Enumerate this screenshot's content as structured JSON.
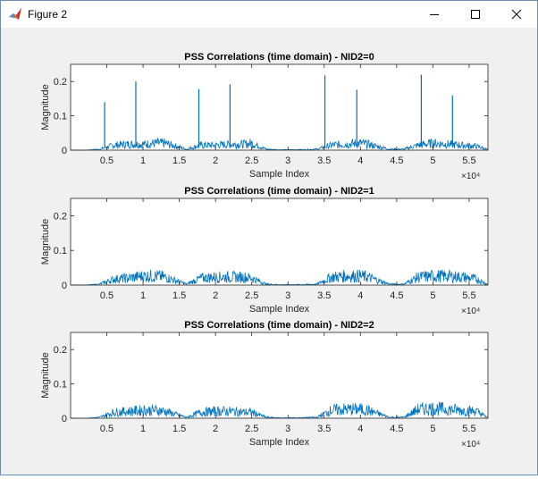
{
  "window": {
    "title": "Figure 2",
    "app_icon": "matlab-icon",
    "controls": {
      "minimize": "minimize-icon",
      "maximize": "maximize-icon",
      "close": "close-icon"
    }
  },
  "chart_data": [
    {
      "type": "line",
      "title": "PSS Correlations (time domain) - NID2=0",
      "xlabel": "Sample Index",
      "ylabel": "Magnitude",
      "xlim": [
        0,
        57600
      ],
      "ylim": [
        0,
        0.25
      ],
      "x_multiplier": "×10⁴",
      "xticks": [
        {
          "v": 5000,
          "label": "0.5"
        },
        {
          "v": 10000,
          "label": "1"
        },
        {
          "v": 15000,
          "label": "1.5"
        },
        {
          "v": 20000,
          "label": "2"
        },
        {
          "v": 25000,
          "label": "2.5"
        },
        {
          "v": 30000,
          "label": "3"
        },
        {
          "v": 35000,
          "label": "3.5"
        },
        {
          "v": 40000,
          "label": "4"
        },
        {
          "v": 45000,
          "label": "4.5"
        },
        {
          "v": 50000,
          "label": "5"
        },
        {
          "v": 55000,
          "label": "5.5"
        }
      ],
      "yticks": [
        {
          "v": 0,
          "label": "0"
        },
        {
          "v": 0.1,
          "label": "0.1"
        },
        {
          "v": 0.2,
          "label": "0.2"
        }
      ],
      "color": "#0072bd",
      "segments": [
        {
          "x": [
            200,
            2000,
            4000,
            6000,
            8000,
            10000,
            12000,
            13000,
            16000,
            18000,
            20000,
            22000,
            24000,
            25000,
            27000,
            29000,
            32000,
            34000,
            36000,
            38000,
            40000,
            41000,
            44000,
            46000,
            48000,
            50000,
            52000,
            54000,
            56000,
            57600
          ],
          "y": [
            0,
            0,
            0.005,
            0.025,
            0.03,
            0.03,
            0.035,
            0.035,
            0.005,
            0.025,
            0.025,
            0.03,
            0.03,
            0.035,
            0.005,
            0.002,
            0.003,
            0.005,
            0.025,
            0.03,
            0.035,
            0.03,
            0.005,
            0.005,
            0.025,
            0.035,
            0.03,
            0.025,
            0.02,
            0.003
          ]
        }
      ],
      "peaks": [
        {
          "x": 4700,
          "y": 0.14
        },
        {
          "x": 9000,
          "y": 0.2
        },
        {
          "x": 17700,
          "y": 0.178
        },
        {
          "x": 22000,
          "y": 0.192
        },
        {
          "x": 35100,
          "y": 0.218
        },
        {
          "x": 39500,
          "y": 0.176
        },
        {
          "x": 48400,
          "y": 0.22
        },
        {
          "x": 52700,
          "y": 0.16
        }
      ]
    },
    {
      "type": "line",
      "title": "PSS Correlations (time domain) - NID2=1",
      "xlabel": "Sample Index",
      "ylabel": "Magnitude",
      "xlim": [
        0,
        57600
      ],
      "ylim": [
        0,
        0.25
      ],
      "x_multiplier": "×10⁴",
      "xticks": [
        {
          "v": 5000,
          "label": "0.5"
        },
        {
          "v": 10000,
          "label": "1"
        },
        {
          "v": 15000,
          "label": "1.5"
        },
        {
          "v": 20000,
          "label": "2"
        },
        {
          "v": 25000,
          "label": "2.5"
        },
        {
          "v": 30000,
          "label": "3"
        },
        {
          "v": 35000,
          "label": "3.5"
        },
        {
          "v": 40000,
          "label": "4"
        },
        {
          "v": 45000,
          "label": "4.5"
        },
        {
          "v": 50000,
          "label": "5"
        },
        {
          "v": 55000,
          "label": "5.5"
        }
      ],
      "yticks": [
        {
          "v": 0,
          "label": "0"
        },
        {
          "v": 0.1,
          "label": "0.1"
        },
        {
          "v": 0.2,
          "label": "0.2"
        }
      ],
      "color": "#0072bd",
      "segments": [
        {
          "x": [
            200,
            2000,
            4000,
            6000,
            8000,
            10000,
            12000,
            13000,
            16000,
            18000,
            20000,
            22000,
            24000,
            25000,
            27000,
            29000,
            32000,
            34000,
            36000,
            38000,
            40000,
            41000,
            44000,
            46000,
            48000,
            50000,
            52000,
            54000,
            56000,
            57600
          ],
          "y": [
            0,
            0,
            0.005,
            0.03,
            0.035,
            0.045,
            0.045,
            0.04,
            0.005,
            0.035,
            0.04,
            0.04,
            0.04,
            0.035,
            0.005,
            0.002,
            0.003,
            0.005,
            0.04,
            0.045,
            0.045,
            0.04,
            0.005,
            0.005,
            0.04,
            0.045,
            0.045,
            0.04,
            0.03,
            0.003
          ]
        }
      ],
      "peaks": []
    },
    {
      "type": "line",
      "title": "PSS Correlations (time domain) - NID2=2",
      "xlabel": "Sample Index",
      "ylabel": "Magnitude",
      "xlim": [
        0,
        57600
      ],
      "ylim": [
        0,
        0.25
      ],
      "x_multiplier": "×10⁴",
      "xticks": [
        {
          "v": 5000,
          "label": "0.5"
        },
        {
          "v": 10000,
          "label": "1"
        },
        {
          "v": 15000,
          "label": "1.5"
        },
        {
          "v": 20000,
          "label": "2"
        },
        {
          "v": 25000,
          "label": "2.5"
        },
        {
          "v": 30000,
          "label": "3"
        },
        {
          "v": 35000,
          "label": "3.5"
        },
        {
          "v": 40000,
          "label": "4"
        },
        {
          "v": 45000,
          "label": "4.5"
        },
        {
          "v": 50000,
          "label": "5"
        },
        {
          "v": 55000,
          "label": "5.5"
        }
      ],
      "yticks": [
        {
          "v": 0,
          "label": "0"
        },
        {
          "v": 0.1,
          "label": "0.1"
        },
        {
          "v": 0.2,
          "label": "0.2"
        }
      ],
      "color": "#0072bd",
      "segments": [
        {
          "x": [
            200,
            2000,
            4000,
            6000,
            8000,
            10000,
            12000,
            13000,
            16000,
            18000,
            20000,
            22000,
            24000,
            25000,
            27000,
            29000,
            32000,
            34000,
            36000,
            38000,
            40000,
            41000,
            44000,
            46000,
            48000,
            50000,
            52000,
            54000,
            56000,
            57600
          ],
          "y": [
            0,
            0,
            0.005,
            0.03,
            0.035,
            0.04,
            0.04,
            0.035,
            0.005,
            0.03,
            0.035,
            0.035,
            0.03,
            0.03,
            0.005,
            0.002,
            0.003,
            0.005,
            0.04,
            0.045,
            0.045,
            0.04,
            0.005,
            0.005,
            0.045,
            0.05,
            0.045,
            0.04,
            0.035,
            0.003
          ]
        }
      ],
      "peaks": []
    }
  ]
}
